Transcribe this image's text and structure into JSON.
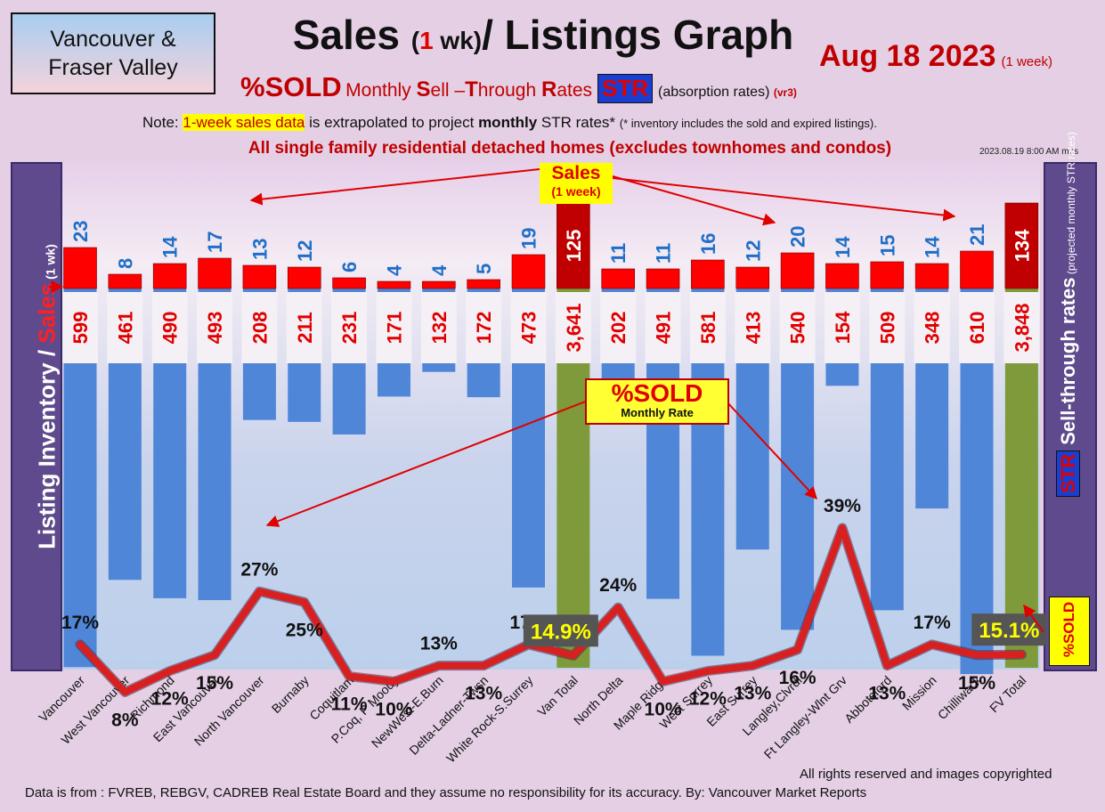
{
  "header": {
    "region_line1": "Vancouver &",
    "region_line2": "Fraser Valley",
    "title_a": "Sales ",
    "title_b": "(",
    "title_c": "1",
    "title_d": " wk)",
    "title_e": "/ Listings Graph",
    "date": "Aug 18  2023",
    "date_note": "(1 week)",
    "subtitle_pct": "%SOLD",
    "subtitle_s": "S",
    "subtitle_ell": "ell –",
    "subtitle_t": "T",
    "subtitle_hrough": "hrough ",
    "subtitle_r": "R",
    "subtitle_ates": "ates",
    "subtitle_str": "STR",
    "subtitle_absorption": "(absorption rates)",
    "subtitle_vr": "(vr3)",
    "monthly_word": "Monthly ",
    "note_prefix": "Note: ",
    "note_highlight": "1-week sales data",
    "note_mid": " is extrapolated to project ",
    "note_bold": "monthly",
    "note_end": " STR rates*",
    "note_small": "(* inventory includes the sold and expired listings).",
    "scope": "All single family residential detached homes (excludes townhomes and condos)",
    "stamp": "2023.08.19 8:00 AM m7s"
  },
  "side_labels": {
    "left_main": "Listing Inventory ",
    "left_slash": "/ ",
    "left_sales": "Sales",
    "left_small": " (1 wk)",
    "right_str": "STR",
    "right_main": " Sell-through rates",
    "right_small": " (projected monthly STR rates)",
    "sold_badge": "%SOLD"
  },
  "annotations": {
    "sales_box_1": "Sales",
    "sales_box_2": "(1 week)",
    "pct_box_1": "%SOLD",
    "pct_box_2": "Monthly Rate"
  },
  "footer": {
    "rights": "All rights reserved and  images copyrighted",
    "source": "Data is from : FVREB, REBGV, CADREB Real Estate Board and they assume no responsibility for its accuracy. By: Vancouver Market Reports"
  },
  "colors": {
    "sales_bar": "#ff0000",
    "total_sales_bar": "#c00000",
    "listing_bar": "#4f86d8",
    "total_listing_bar": "#7e9a3a",
    "sales_label": "#1f6fc8",
    "listing_label": "#e00000",
    "str_line": "#d82020",
    "total_str_box": "#555555",
    "total_str_text": "#ffff00"
  },
  "chart_data": {
    "type": "bar",
    "categories": [
      "Vancouver",
      "West Vancouver",
      "Richmond",
      "East Vancouver",
      "North Vancouver",
      "Burnaby",
      "Coquitlam",
      "P.Coq, P Moody",
      "NewWest-E.Burn",
      "Delta-Ladner-Twsn",
      "White Rock-S.Surrey",
      "Van Total",
      "North Delta",
      "Maple Ridge",
      "West Surrey",
      "East Surrey",
      "Langley,Clvrdl",
      "Ft Langley-Wlnt Grv",
      "Abbotsford",
      "Mission",
      "Chilliwack",
      "FV Total"
    ],
    "series": [
      {
        "name": "Sales",
        "values": [
          23,
          8,
          14,
          17,
          13,
          12,
          6,
          4,
          4,
          5,
          19,
          125,
          11,
          11,
          16,
          12,
          20,
          14,
          15,
          14,
          21,
          134
        ]
      },
      {
        "name": "Listing Inventory",
        "values": [
          599,
          461,
          490,
          493,
          208,
          211,
          231,
          171,
          132,
          172,
          473,
          3641,
          202,
          491,
          581,
          413,
          540,
          154,
          509,
          348,
          610,
          3848
        ]
      },
      {
        "name": "STR",
        "values": [
          17,
          8,
          12,
          15,
          27,
          25,
          11,
          10,
          13,
          13,
          17,
          14.9,
          24,
          10,
          12,
          13,
          16,
          39,
          13,
          17,
          15,
          15.1
        ]
      }
    ],
    "sales_labels": [
      "23",
      "8",
      "14",
      "17",
      "13",
      "12",
      "6",
      "4",
      "4",
      "5",
      "19",
      "125",
      "11",
      "11",
      "16",
      "12",
      "20",
      "14",
      "15",
      "14",
      "21",
      "134"
    ],
    "listing_labels": [
      "599",
      "461",
      "490",
      "493",
      "208",
      "211",
      "231",
      "171",
      "132",
      "172",
      "473",
      "3,641",
      "202",
      "491",
      "581",
      "413",
      "540",
      "154",
      "509",
      "348",
      "610",
      "3,848"
    ],
    "str_labels": [
      "17%",
      "8%",
      "12%",
      "15%",
      "27%",
      "25%",
      "11%",
      "10%",
      "13%",
      "13%",
      "17%",
      "14.9%",
      "24%",
      "10%",
      "12%",
      "13%",
      "16%",
      "39%",
      "13%",
      "17%",
      "15%",
      "15.1%"
    ],
    "totals_index": [
      11,
      21
    ],
    "grid": false
  }
}
